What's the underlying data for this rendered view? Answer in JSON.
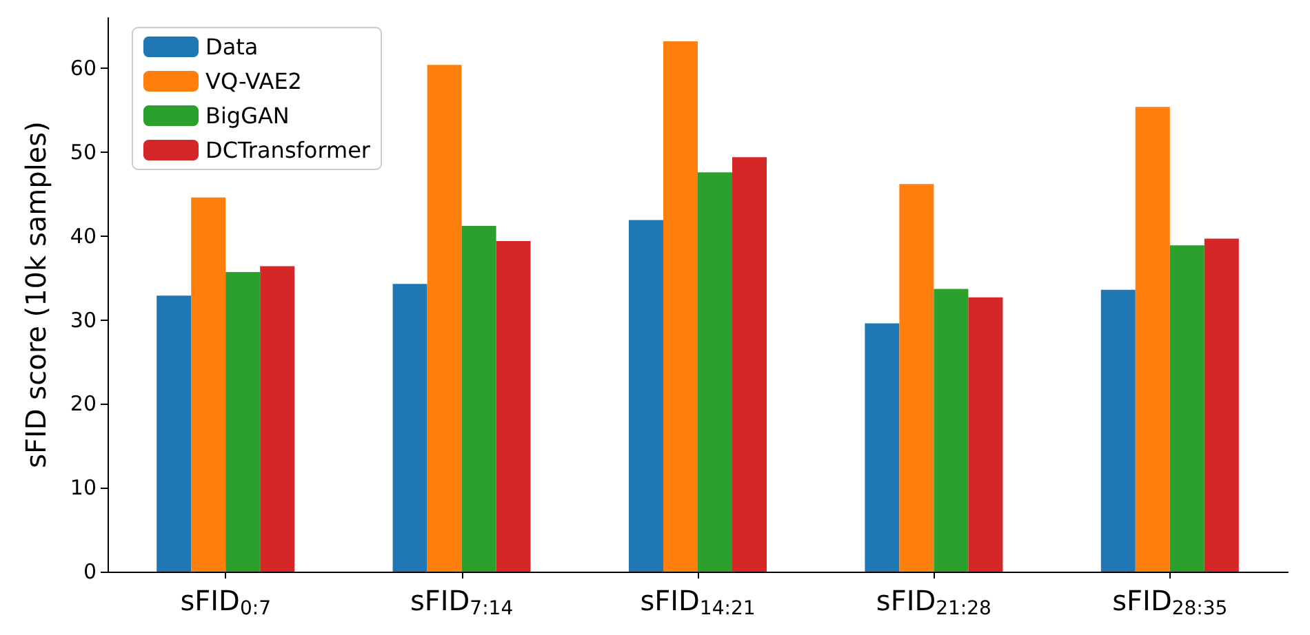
{
  "chart_data": {
    "type": "bar",
    "ylabel": "sFID score (10k samples)",
    "categories": [
      "sFID$_{0:7}$",
      "sFID$_{7:14}$",
      "sFID$_{14:21}$",
      "sFID$_{21:28}$",
      "sFID$_{28:35}$"
    ],
    "series": [
      {
        "name": "Data",
        "color": "#1f77b4",
        "values": [
          32.9,
          34.3,
          41.9,
          29.6,
          33.6
        ]
      },
      {
        "name": "VQ-VAE2",
        "color": "#ff7f0e",
        "values": [
          44.6,
          60.4,
          63.2,
          46.2,
          55.4
        ]
      },
      {
        "name": "BigGAN",
        "color": "#2ca02c",
        "values": [
          35.7,
          41.2,
          47.6,
          33.7,
          38.9
        ]
      },
      {
        "name": "DCTransformer",
        "color": "#d62728",
        "values": [
          36.4,
          39.4,
          49.4,
          32.7,
          39.7
        ]
      }
    ],
    "ylim": [
      0,
      66
    ],
    "yticks": [
      0,
      10,
      20,
      30,
      40,
      50,
      60
    ],
    "grid": false,
    "legend": "top left"
  }
}
